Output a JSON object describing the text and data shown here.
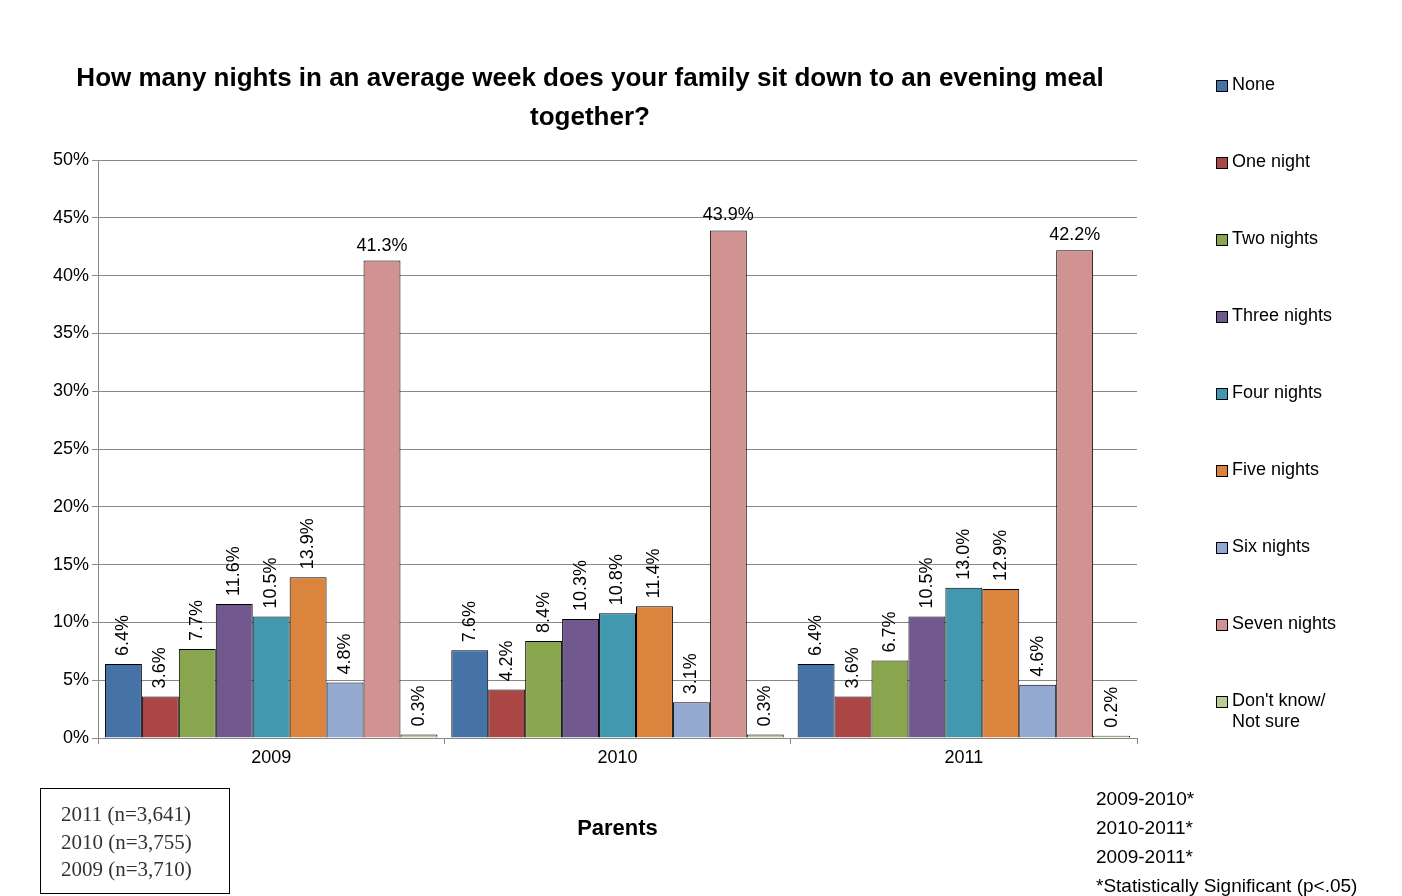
{
  "chart_data": {
    "type": "bar",
    "title": "How many nights in an average week does your family sit down to an evening meal together?",
    "xlabel": "Parents",
    "categories": [
      "2009",
      "2010",
      "2011"
    ],
    "series": [
      {
        "name": "None",
        "color": "#4572a7",
        "values": [
          6.4,
          7.6,
          6.4
        ],
        "value_labels": [
          "6.4%",
          "7.6%",
          "6.4%"
        ]
      },
      {
        "name": "One night",
        "color": "#aa4643",
        "values": [
          3.6,
          4.2,
          3.6
        ],
        "value_labels": [
          "3.6%",
          "4.2%",
          "3.6%"
        ]
      },
      {
        "name": "Two nights",
        "color": "#89a54e",
        "values": [
          7.7,
          8.4,
          6.7
        ],
        "value_labels": [
          "7.7%",
          "8.4%",
          "6.7%"
        ]
      },
      {
        "name": "Three nights",
        "color": "#71588f",
        "values": [
          11.6,
          10.3,
          10.5
        ],
        "value_labels": [
          "11.6%",
          "10.3%",
          "10.5%"
        ]
      },
      {
        "name": "Four nights",
        "color": "#4198af",
        "values": [
          10.5,
          10.8,
          13.0
        ],
        "value_labels": [
          "10.5%",
          "10.8%",
          "13.0%"
        ]
      },
      {
        "name": "Five nights",
        "color": "#db843d",
        "values": [
          13.9,
          11.4,
          12.9
        ],
        "value_labels": [
          "13.9%",
          "11.4%",
          "12.9%"
        ]
      },
      {
        "name": "Six nights",
        "color": "#93a9cf",
        "values": [
          4.8,
          3.1,
          4.6
        ],
        "value_labels": [
          "4.8%",
          "3.1%",
          "4.6%"
        ]
      },
      {
        "name": "Seven nights",
        "color": "#d19392",
        "values": [
          41.3,
          43.9,
          42.2
        ],
        "value_labels": [
          "41.3%",
          "43.9%",
          "42.2%"
        ]
      },
      {
        "name": "Don't know/ Not sure",
        "color": "#b9cd96",
        "values": [
          0.3,
          0.3,
          0.2
        ],
        "value_labels": [
          "0.3%",
          "0.3%",
          "0.2%"
        ]
      }
    ],
    "ylim": [
      0,
      50
    ],
    "yticks": [
      {
        "value": 0,
        "label": "0%"
      },
      {
        "value": 5,
        "label": "5%"
      },
      {
        "value": 10,
        "label": "10%"
      },
      {
        "value": 15,
        "label": "15%"
      },
      {
        "value": 20,
        "label": "20%"
      },
      {
        "value": 25,
        "label": "25%"
      },
      {
        "value": 30,
        "label": "30%"
      },
      {
        "value": 35,
        "label": "35%"
      },
      {
        "value": 40,
        "label": "40%"
      },
      {
        "value": 45,
        "label": "45%"
      },
      {
        "value": 50,
        "label": "50%"
      }
    ],
    "grid": "y",
    "legend": "right",
    "annotations": [
      "2011 (n=3,641)",
      "2010 (n=3,755)",
      "2009 (n=3,710)",
      "2009-2010*",
      "2010-2011*",
      "2009-2011*",
      "*Statistically Significant (p<.05)"
    ]
  }
}
